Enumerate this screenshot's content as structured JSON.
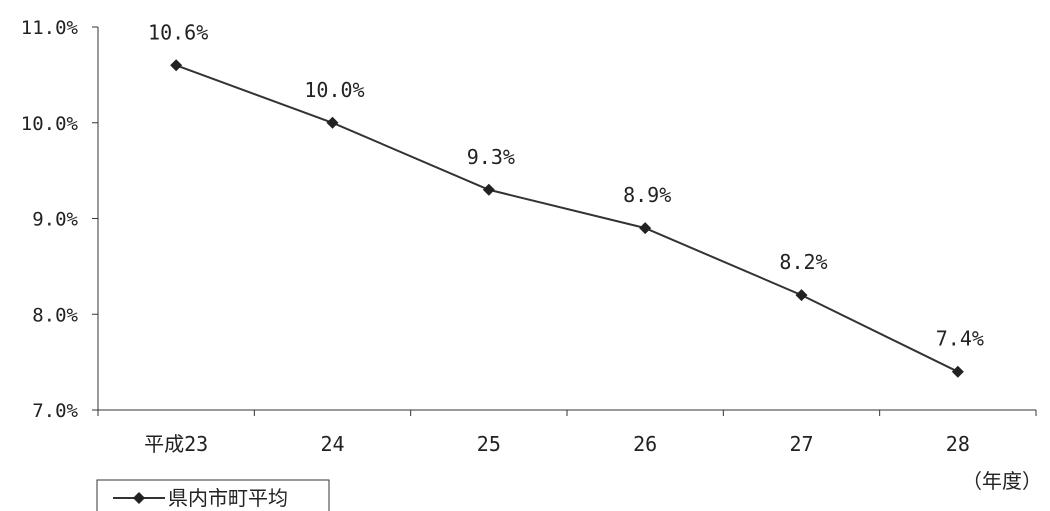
{
  "chart_data": {
    "type": "line",
    "categories": [
      "平成23",
      "24",
      "25",
      "26",
      "27",
      "28"
    ],
    "series": [
      {
        "name": "県内市町平均",
        "values": [
          10.6,
          10.0,
          9.3,
          8.9,
          8.2,
          7.4
        ],
        "data_labels": [
          "10.6%",
          "10.0%",
          "9.3%",
          "8.9%",
          "8.2%",
          "7.4%"
        ],
        "marker": "diamond",
        "color": "#333333"
      }
    ],
    "ylim": [
      7.0,
      11.0
    ],
    "yticks": [
      7.0,
      8.0,
      9.0,
      10.0,
      11.0
    ],
    "ytick_labels": [
      "7.0%",
      "8.0%",
      "9.0%",
      "10.0%",
      "11.0%"
    ],
    "x_unit_label": "（年度）",
    "title": "",
    "xlabel": "",
    "ylabel": "",
    "grid": false,
    "legend_position": "bottom-left"
  }
}
